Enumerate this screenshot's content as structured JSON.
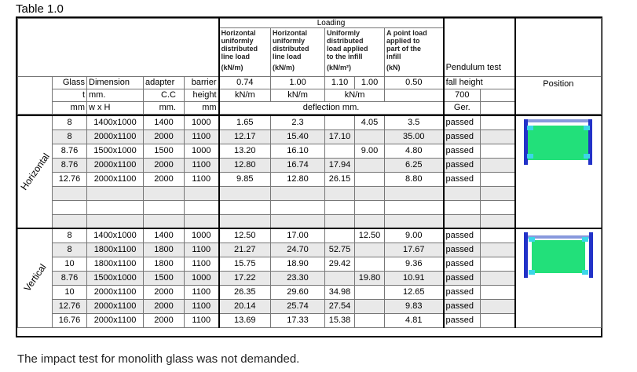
{
  "title": "Table 1.0",
  "footer": "The impact test for monolith glass was not demanded.",
  "header": {
    "loading": "Loading",
    "load_cols": [
      {
        "lines": [
          "Horizontal",
          "uniformly",
          "distributed",
          "line load"
        ],
        "unit": "(kN/m)"
      },
      {
        "lines": [
          "Horizontal",
          "uniformly",
          "distributed",
          "line load"
        ],
        "unit": "(kN/m)"
      },
      {
        "lines": [
          "Uniformly",
          "distributed",
          "load applied",
          "to the infill"
        ],
        "unit": "(kN/m²)"
      },
      {
        "lines": [
          "A point load",
          "applied to",
          "part of the",
          "infill"
        ],
        "unit": "(kN)"
      }
    ],
    "pendulum": "Pendulum test",
    "glass": [
      "Glass",
      "t",
      "mm"
    ],
    "dimension": [
      "Dimension",
      "mm.",
      "w  x  H"
    ],
    "adapter": [
      "adapter",
      "C.C",
      "mm."
    ],
    "barrier": [
      "barrier",
      "height",
      "mm"
    ],
    "load_values": [
      "0.74",
      "1.00",
      "1.10",
      "1.00",
      "0.50"
    ],
    "load_units": [
      "kN/m",
      "kN/m",
      "kN/m"
    ],
    "deflection": "deflection mm.",
    "fall_height": "fall height",
    "fall_value": "700",
    "ger": "Ger.",
    "position": "Position"
  },
  "groups": [
    {
      "label": "Horizontal",
      "rows": [
        [
          "8",
          "1400x1000",
          "1400",
          "1000",
          "1.65",
          "2.3",
          "",
          "4.05",
          "3.5",
          "passed"
        ],
        [
          "8",
          "2000x1100",
          "2000",
          "1100",
          "12.17",
          "15.40",
          "17.10",
          "",
          "35.00",
          "passed"
        ],
        [
          "8.76",
          "1500x1000",
          "1500",
          "1000",
          "13.20",
          "16.10",
          "",
          "9.00",
          "4.80",
          "passed"
        ],
        [
          "8.76",
          "2000x1100",
          "2000",
          "1100",
          "12.80",
          "16.74",
          "17.94",
          "",
          "6.25",
          "passed"
        ],
        [
          "12.76",
          "2000x1100",
          "2000",
          "1100",
          "9.85",
          "12.80",
          "26.15",
          "",
          "8.80",
          "passed"
        ],
        [
          "",
          "",
          "",
          "",
          "",
          "",
          "",
          "",
          "",
          ""
        ],
        [
          "",
          "",
          "",
          "",
          "",
          "",
          "",
          "",
          "",
          ""
        ],
        [
          "",
          "",
          "",
          "",
          "",
          "",
          "",
          "",
          "",
          ""
        ]
      ]
    },
    {
      "label": "Vertical",
      "rows": [
        [
          "8",
          "1400x1000",
          "1400",
          "1000",
          "12.50",
          "17.00",
          "",
          "12.50",
          "9.00",
          "passed"
        ],
        [
          "8",
          "1800x1100",
          "1800",
          "1100",
          "21.27",
          "24.70",
          "52.75",
          "",
          "17.67",
          "passed"
        ],
        [
          "10",
          "1800x1100",
          "1800",
          "1100",
          "15.75",
          "18.90",
          "29.42",
          "",
          "9.36",
          "passed"
        ],
        [
          "8.76",
          "1500x1000",
          "1500",
          "1000",
          "17.22",
          "23.30",
          "",
          "19.80",
          "10.91",
          "passed"
        ],
        [
          "10",
          "2000x1100",
          "2000",
          "1100",
          "26.35",
          "29.60",
          "34.98",
          "",
          "12.65",
          "passed"
        ],
        [
          "12.76",
          "2000x1100",
          "2000",
          "1100",
          "20.14",
          "25.74",
          "27.54",
          "",
          "9.83",
          "passed"
        ],
        [
          "16.76",
          "2000x1100",
          "2000",
          "1100",
          "13.69",
          "17.33",
          "15.38",
          "",
          "4.81",
          "passed"
        ]
      ]
    }
  ],
  "colors": {
    "glass": "#22e07a",
    "frame": "#2232c8",
    "clamp": "#3cd6e8"
  }
}
